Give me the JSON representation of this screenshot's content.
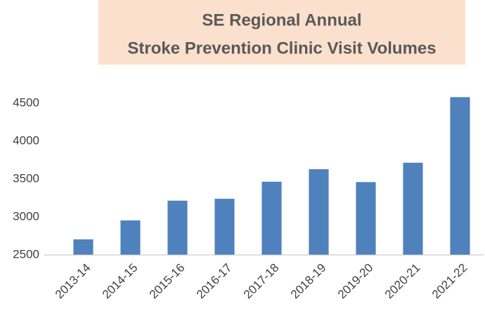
{
  "chart_data": {
    "type": "bar",
    "title": [
      "SE Regional Annual",
      "Stroke Prevention Clinic Visit Volumes"
    ],
    "categories": [
      "2013-14",
      "2014-15",
      "2015-16",
      "2016-17",
      "2017-18",
      "2018-19",
      "2019-20",
      "2020-21",
      "2021-22"
    ],
    "values": [
      2705,
      2955,
      3215,
      3240,
      3465,
      3630,
      3460,
      3715,
      4580
    ],
    "color": "#4f81bd",
    "ylim": [
      2500,
      4620
    ],
    "yticks": [
      2500,
      3000,
      3500,
      4000,
      4500
    ],
    "grid": false
  }
}
